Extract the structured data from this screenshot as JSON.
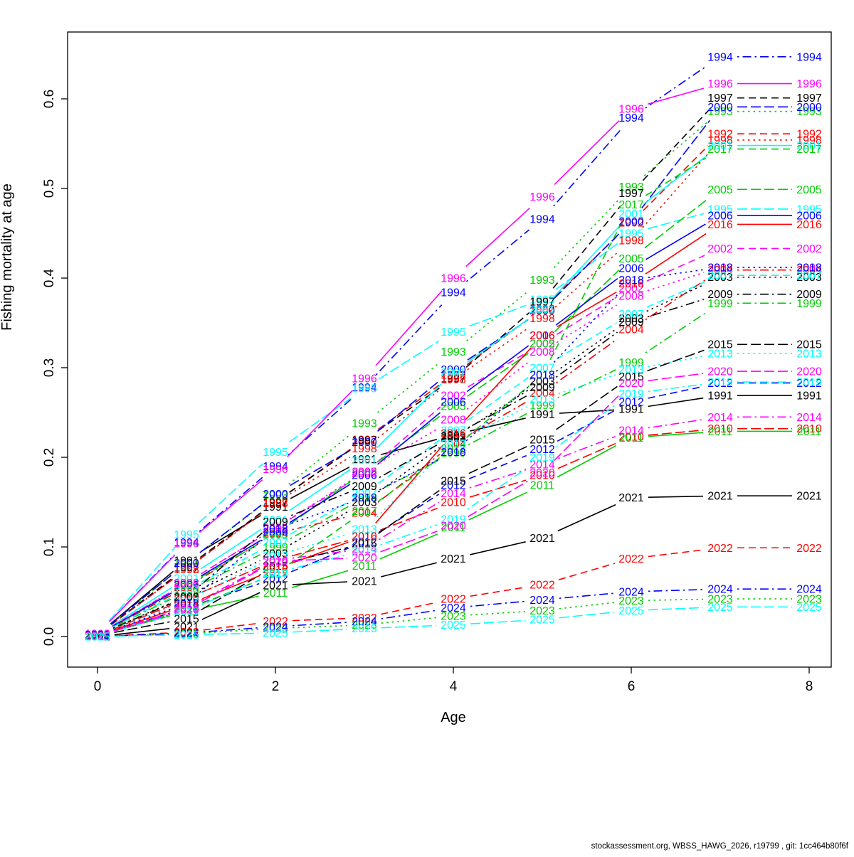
{
  "footer": {
    "text": "stockassessment.org, WBSS_HAWG_2026, r19799 , git: 1cc464b80f6f"
  },
  "chart_data": {
    "type": "line",
    "title": "",
    "xlabel": "Age",
    "ylabel": "Fishing mortality at age",
    "x": [
      0,
      1,
      2,
      3,
      4,
      5,
      6,
      7,
      8
    ],
    "xticks": [
      0,
      2,
      4,
      6,
      8
    ],
    "yticks": [
      "0.0",
      "0.1",
      "0.2",
      "0.3",
      "0.4",
      "0.5",
      "0.6"
    ],
    "xlim": [
      -0.33,
      8.25
    ],
    "ylim": [
      0.0,
      0.675
    ],
    "grid": false,
    "legend": "year labels drawn at every data point (R matplot type='b')",
    "palette_note": "R default colors black/red/green3/blue/cyan/magenta cycling, lty 1-5 cycling",
    "series": [
      {
        "name": "1991",
        "color": "#000000",
        "linetype": "solid",
        "values": [
          0.002,
          0.085,
          0.145,
          0.198,
          0.225,
          0.248,
          0.254,
          0.269,
          0.269
        ]
      },
      {
        "name": "1992",
        "color": "#FF0000",
        "linetype": "dashed",
        "values": [
          0.002,
          0.075,
          0.15,
          0.22,
          0.292,
          0.366,
          0.462,
          0.561,
          0.561
        ]
      },
      {
        "name": "1993",
        "color": "#00CD00",
        "linetype": "dotted",
        "values": [
          0.002,
          0.082,
          0.158,
          0.238,
          0.318,
          0.398,
          0.502,
          0.586,
          0.586
        ]
      },
      {
        "name": "1994",
        "color": "#0000FF",
        "linetype": "dotdash",
        "values": [
          0.003,
          0.105,
          0.19,
          0.278,
          0.384,
          0.466,
          0.579,
          0.647,
          0.647
        ]
      },
      {
        "name": "1995",
        "color": "#00FFFF",
        "linetype": "longdash",
        "values": [
          0.003,
          0.114,
          0.206,
          0.277,
          0.34,
          0.376,
          0.45,
          0.477,
          0.477
        ]
      },
      {
        "name": "1996",
        "color": "#FF00FF",
        "linetype": "solid",
        "values": [
          0.003,
          0.104,
          0.187,
          0.288,
          0.4,
          0.491,
          0.589,
          0.617,
          0.617
        ]
      },
      {
        "name": "1997",
        "color": "#000000",
        "linetype": "dashed",
        "values": [
          0.002,
          0.077,
          0.15,
          0.219,
          0.288,
          0.374,
          0.495,
          0.601,
          0.601
        ]
      },
      {
        "name": "1998",
        "color": "#FF0000",
        "linetype": "dotted",
        "values": [
          0.002,
          0.075,
          0.149,
          0.21,
          0.287,
          0.355,
          0.442,
          0.554,
          0.554
        ]
      },
      {
        "name": "1999",
        "color": "#00CD00",
        "linetype": "dotdash",
        "values": [
          0.002,
          0.05,
          0.1,
          0.155,
          0.205,
          0.258,
          0.306,
          0.372,
          0.372
        ]
      },
      {
        "name": "2000",
        "color": "#0000FF",
        "linetype": "longdash",
        "values": [
          0.002,
          0.082,
          0.159,
          0.217,
          0.298,
          0.364,
          0.463,
          0.591,
          0.591
        ]
      },
      {
        "name": "2001",
        "color": "#00FFFF",
        "linetype": "solid",
        "values": [
          0.002,
          0.065,
          0.13,
          0.197,
          0.295,
          0.365,
          0.472,
          0.548,
          0.548
        ]
      },
      {
        "name": "2002",
        "color": "#FF00FF",
        "linetype": "dashed",
        "values": [
          0.002,
          0.06,
          0.121,
          0.182,
          0.269,
          0.327,
          0.389,
          0.433,
          0.433
        ]
      },
      {
        "name": "2003",
        "color": "#000000",
        "linetype": "dotted",
        "values": [
          0.002,
          0.045,
          0.093,
          0.15,
          0.222,
          0.285,
          0.355,
          0.401,
          0.401
        ]
      },
      {
        "name": "2004",
        "color": "#FF0000",
        "linetype": "dotdash",
        "values": [
          0.002,
          0.055,
          0.115,
          0.138,
          0.215,
          0.272,
          0.343,
          0.409,
          0.409
        ]
      },
      {
        "name": "2005",
        "color": "#00CD00",
        "linetype": "longdash",
        "values": [
          0.002,
          0.057,
          0.114,
          0.184,
          0.257,
          0.327,
          0.422,
          0.499,
          0.499
        ]
      },
      {
        "name": "2006",
        "color": "#0000FF",
        "linetype": "solid",
        "values": [
          0.002,
          0.058,
          0.117,
          0.18,
          0.262,
          0.336,
          0.411,
          0.47,
          0.47
        ]
      },
      {
        "name": "2007",
        "color": "#00FFFF",
        "linetype": "dashed",
        "values": [
          0.002,
          0.052,
          0.105,
          0.16,
          0.23,
          0.3,
          0.36,
          0.403,
          0.403
        ]
      },
      {
        "name": "2008",
        "color": "#FF00FF",
        "linetype": "dotted",
        "values": [
          0.002,
          0.06,
          0.121,
          0.184,
          0.242,
          0.318,
          0.38,
          0.412,
          0.412
        ]
      },
      {
        "name": "2009",
        "color": "#000000",
        "linetype": "dotdash",
        "values": [
          0.002,
          0.044,
          0.128,
          0.168,
          0.224,
          0.278,
          0.351,
          0.382,
          0.382
        ]
      },
      {
        "name": "2010",
        "color": "#FF0000",
        "linetype": "longdash",
        "values": [
          0.001,
          0.042,
          0.085,
          0.112,
          0.15,
          0.18,
          0.223,
          0.232,
          0.232
        ]
      },
      {
        "name": "2011",
        "color": "#00CD00",
        "linetype": "solid",
        "values": [
          0.001,
          0.028,
          0.049,
          0.079,
          0.122,
          0.169,
          0.222,
          0.229,
          0.229
        ]
      },
      {
        "name": "2012",
        "color": "#0000FF",
        "linetype": "dashed",
        "values": [
          0.001,
          0.032,
          0.065,
          0.106,
          0.169,
          0.209,
          0.262,
          0.283,
          0.283
        ]
      },
      {
        "name": "2013",
        "color": "#00FFFF",
        "linetype": "dotted",
        "values": [
          0.001,
          0.04,
          0.09,
          0.12,
          0.215,
          0.265,
          0.298,
          0.316,
          0.316
        ]
      },
      {
        "name": "2014",
        "color": "#FF00FF",
        "linetype": "dotdash",
        "values": [
          0.001,
          0.032,
          0.085,
          0.098,
          0.16,
          0.192,
          0.23,
          0.245,
          0.245
        ]
      },
      {
        "name": "2015",
        "color": "#000000",
        "linetype": "longdash",
        "values": [
          0.001,
          0.02,
          0.079,
          0.104,
          0.174,
          0.22,
          0.29,
          0.326,
          0.326
        ]
      },
      {
        "name": "2016",
        "color": "#FF0000",
        "linetype": "solid",
        "values": [
          0.001,
          0.035,
          0.075,
          0.112,
          0.227,
          0.336,
          0.394,
          0.46,
          0.46
        ]
      },
      {
        "name": "2017",
        "color": "#00CD00",
        "linetype": "dashed",
        "values": [
          0.001,
          0.03,
          0.07,
          0.14,
          0.21,
          0.292,
          0.482,
          0.544,
          0.544
        ]
      },
      {
        "name": "2018",
        "color": "#0000FF",
        "linetype": "dotted",
        "values": [
          0.001,
          0.037,
          0.12,
          0.155,
          0.206,
          0.292,
          0.398,
          0.412,
          0.412
        ]
      },
      {
        "name": "2019",
        "color": "#00FFFF",
        "linetype": "dotdash",
        "values": [
          0.001,
          0.028,
          0.071,
          0.096,
          0.131,
          0.2,
          0.271,
          0.284,
          0.284
        ]
      },
      {
        "name": "2020",
        "color": "#FF00FF",
        "linetype": "longdash",
        "values": [
          0.001,
          0.03,
          0.084,
          0.088,
          0.124,
          0.183,
          0.283,
          0.296,
          0.296
        ]
      },
      {
        "name": "2021",
        "color": "#000000",
        "linetype": "solid",
        "values": [
          0.0,
          0.011,
          0.057,
          0.062,
          0.087,
          0.11,
          0.155,
          0.157,
          0.157
        ]
      },
      {
        "name": "2022",
        "color": "#FF0000",
        "linetype": "dashed",
        "values": [
          0.0,
          0.005,
          0.017,
          0.021,
          0.042,
          0.058,
          0.087,
          0.099,
          0.099
        ]
      },
      {
        "name": "2023",
        "color": "#00CD00",
        "linetype": "dotted",
        "values": [
          0.0,
          0.003,
          0.009,
          0.013,
          0.023,
          0.029,
          0.04,
          0.042,
          0.042
        ]
      },
      {
        "name": "2024",
        "color": "#0000FF",
        "linetype": "dotdash",
        "values": [
          0.0,
          0.004,
          0.011,
          0.017,
          0.032,
          0.041,
          0.05,
          0.053,
          0.053
        ]
      },
      {
        "name": "2025",
        "color": "#00FFFF",
        "linetype": "longdash",
        "values": [
          0.0,
          0.002,
          0.004,
          0.009,
          0.013,
          0.019,
          0.029,
          0.033,
          0.033
        ]
      }
    ]
  }
}
